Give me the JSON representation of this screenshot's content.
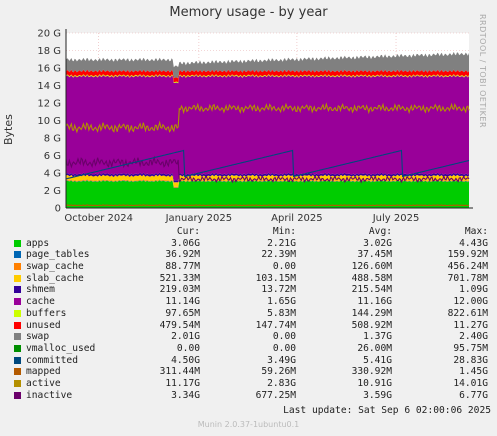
{
  "chart_data": {
    "type": "area",
    "title": "Memory usage - by year",
    "ylabel": "Bytes",
    "side_text": "RRDTOOL / TOBI OETIKER",
    "yunit": "G",
    "ylim": [
      0,
      20
    ],
    "yticks": [
      {
        "value": 0,
        "label": "0"
      },
      {
        "value": 2,
        "label": "2 G"
      },
      {
        "value": 4,
        "label": "4 G"
      },
      {
        "value": 6,
        "label": "6 G"
      },
      {
        "value": 8,
        "label": "8 G"
      },
      {
        "value": 10,
        "label": "10 G"
      },
      {
        "value": 12,
        "label": "12 G"
      },
      {
        "value": 14,
        "label": "14 G"
      },
      {
        "value": 16,
        "label": "16 G"
      },
      {
        "value": 18,
        "label": "18 G"
      },
      {
        "value": 20,
        "label": "20 G"
      }
    ],
    "xlim": [
      "2024-09-01",
      "2025-09-06"
    ],
    "xticks": [
      {
        "date": "2024-10-01",
        "label": "October 2024"
      },
      {
        "date": "2025-01-01",
        "label": "January 2025"
      },
      {
        "date": "2025-04-01",
        "label": "April 2025"
      },
      {
        "date": "2025-07-01",
        "label": "July 2025"
      }
    ],
    "grid": true,
    "columns": [
      "Cur:",
      "Min:",
      "Avg:",
      "Max:"
    ],
    "legend": [
      {
        "name": "apps",
        "color": "#00cc00",
        "cur": "3.06G",
        "min": "2.21G",
        "avg": "3.02G",
        "max": "4.43G"
      },
      {
        "name": "page_tables",
        "color": "#0066b3",
        "cur": "36.92M",
        "min": "22.39M",
        "avg": "37.45M",
        "max": "159.92M"
      },
      {
        "name": "swap_cache",
        "color": "#ff8000",
        "cur": "88.77M",
        "min": "0.00",
        "avg": "126.60M",
        "max": "456.24M"
      },
      {
        "name": "slab_cache",
        "color": "#ffcc00",
        "cur": "521.33M",
        "min": "103.15M",
        "avg": "488.58M",
        "max": "701.78M"
      },
      {
        "name": "shmem",
        "color": "#330099",
        "cur": "219.03M",
        "min": "13.72M",
        "avg": "215.54M",
        "max": "1.09G"
      },
      {
        "name": "cache",
        "color": "#990099",
        "cur": "11.14G",
        "min": "1.65G",
        "avg": "11.16G",
        "max": "12.00G"
      },
      {
        "name": "buffers",
        "color": "#ccff00",
        "cur": "97.65M",
        "min": "5.83M",
        "avg": "144.29M",
        "max": "822.61M"
      },
      {
        "name": "unused",
        "color": "#ff0000",
        "cur": "479.54M",
        "min": "147.74M",
        "avg": "508.92M",
        "max": "11.27G"
      },
      {
        "name": "swap",
        "color": "#808080",
        "cur": "2.01G",
        "min": "0.00",
        "avg": "1.37G",
        "max": "2.40G"
      },
      {
        "name": "vmalloc_used",
        "color": "#008f00",
        "cur": "0.00",
        "min": "0.00",
        "avg": "26.00M",
        "max": "95.75M"
      },
      {
        "name": "committed",
        "color": "#00487d",
        "cur": "4.50G",
        "min": "3.49G",
        "avg": "5.41G",
        "max": "28.83G"
      },
      {
        "name": "mapped",
        "color": "#b35a00",
        "cur": "311.44M",
        "min": "59.26M",
        "avg": "330.92M",
        "max": "1.45G"
      },
      {
        "name": "active",
        "color": "#b38f00",
        "cur": "11.17G",
        "min": "2.83G",
        "avg": "10.91G",
        "max": "14.01G"
      },
      {
        "name": "inactive",
        "color": "#6b006b",
        "cur": "3.34G",
        "min": "677.25M",
        "avg": "3.59G",
        "max": "6.77G"
      }
    ],
    "last_update": "Last update:  Sat Sep  6 02:00:06 2025",
    "footer": "Munin 2.0.37-1ubuntu0.1"
  }
}
